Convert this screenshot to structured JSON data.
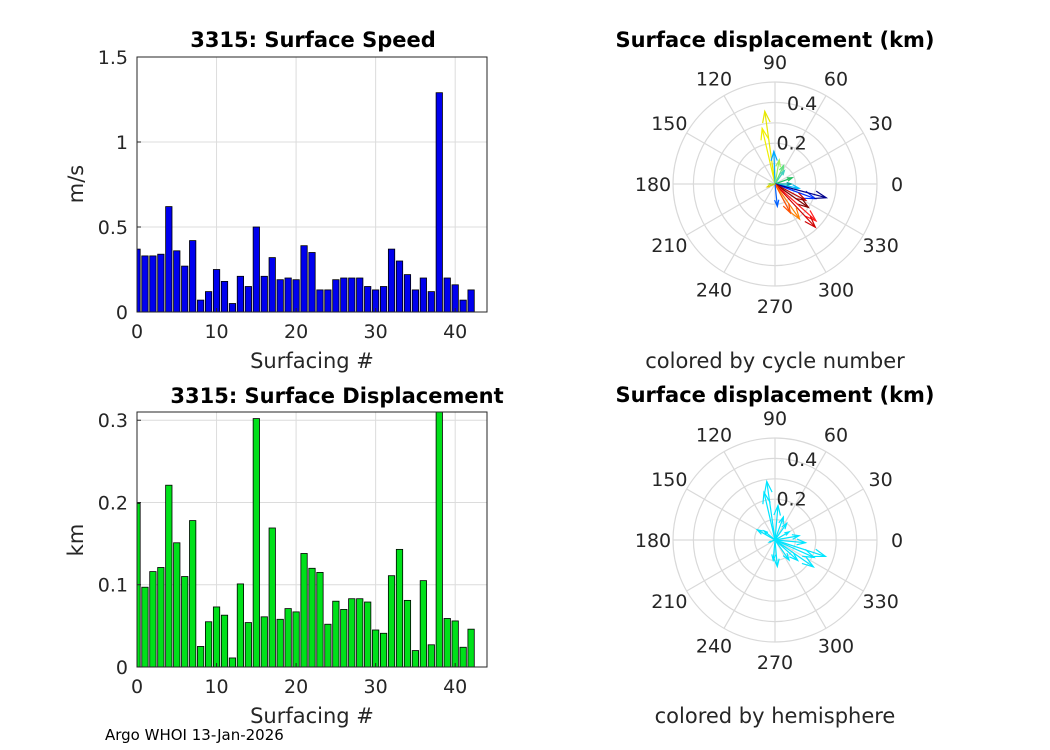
{
  "footer": "Argo WHOI 13-Jan-2026",
  "chart_data": [
    {
      "type": "bar",
      "title": "3315: Surface Speed",
      "xlabel": "Surfacing #",
      "ylabel": "m/s",
      "xlim": [
        0,
        44
      ],
      "ylim": [
        0,
        1.5
      ],
      "xticks": [
        "0",
        "10",
        "20",
        "30",
        "40"
      ],
      "yticks": [
        "0",
        "0.5",
        "1",
        "1.5"
      ],
      "color": "#0000ee",
      "x": [
        0,
        1,
        2,
        3,
        4,
        5,
        6,
        7,
        8,
        9,
        10,
        11,
        12,
        13,
        14,
        15,
        16,
        17,
        18,
        19,
        20,
        21,
        22,
        23,
        24,
        25,
        26,
        27,
        28,
        29,
        30,
        31,
        32,
        33,
        34,
        35,
        36,
        37,
        38,
        39,
        40,
        41,
        42
      ],
      "values": [
        0.37,
        0.33,
        0.33,
        0.34,
        0.62,
        0.36,
        0.27,
        0.42,
        0.07,
        0.12,
        0.25,
        0.18,
        0.05,
        0.21,
        0.15,
        0.5,
        0.21,
        0.32,
        0.19,
        0.2,
        0.19,
        0.39,
        0.35,
        0.13,
        0.13,
        0.19,
        0.2,
        0.2,
        0.2,
        0.15,
        0.13,
        0.15,
        0.37,
        0.3,
        0.22,
        0.13,
        0.2,
        0.12,
        1.29,
        0.2,
        0.16,
        0.07,
        0.13
      ]
    },
    {
      "type": "bar",
      "title": "3315: Surface Displacement",
      "xlabel": "Surfacing #",
      "ylabel": "km",
      "xlim": [
        0,
        44
      ],
      "ylim": [
        0,
        0.31
      ],
      "xticks": [
        "0",
        "10",
        "20",
        "30",
        "40"
      ],
      "yticks": [
        "0",
        "0.1",
        "0.2",
        "0.3"
      ],
      "color": "#00e01a",
      "x": [
        0,
        1,
        2,
        3,
        4,
        5,
        6,
        7,
        8,
        9,
        10,
        11,
        12,
        13,
        14,
        15,
        16,
        17,
        18,
        19,
        20,
        21,
        22,
        23,
        24,
        25,
        26,
        27,
        28,
        29,
        30,
        31,
        32,
        33,
        34,
        35,
        36,
        37,
        38,
        39,
        40,
        41,
        42
      ],
      "values": [
        0.199,
        0.097,
        0.116,
        0.121,
        0.221,
        0.151,
        0.11,
        0.178,
        0.025,
        0.055,
        0.073,
        0.063,
        0.011,
        0.101,
        0.054,
        0.302,
        0.061,
        0.169,
        0.058,
        0.071,
        0.067,
        0.138,
        0.12,
        0.115,
        0.052,
        0.08,
        0.07,
        0.083,
        0.083,
        0.079,
        0.045,
        0.041,
        0.111,
        0.143,
        0.081,
        0.02,
        0.105,
        0.027,
        0.31,
        0.059,
        0.056,
        0.024,
        0.046
      ]
    },
    {
      "type": "polar-compass",
      "title": "Surface displacement (km)",
      "caption": "colored by cycle number",
      "rmax": 0.5,
      "radial_ticks": [
        "0.2",
        "0.4"
      ],
      "angle_labels": [
        "0",
        "30",
        "60",
        "90",
        "120",
        "150",
        "180",
        "210",
        "240",
        "270",
        "300",
        "330"
      ],
      "arrows": [
        {
          "angle": 98,
          "r": 0.36,
          "color": "#e6e600"
        },
        {
          "angle": 103,
          "r": 0.28,
          "color": "#f0f000"
        },
        {
          "angle": 92,
          "r": 0.16,
          "color": "#00aaff"
        },
        {
          "angle": 80,
          "r": 0.12,
          "color": "#9ef05a"
        },
        {
          "angle": 65,
          "r": 0.1,
          "color": "#60e080"
        },
        {
          "angle": 55,
          "r": 0.08,
          "color": "#40d0c0"
        },
        {
          "angle": 20,
          "r": 0.09,
          "color": "#20c060"
        },
        {
          "angle": 0,
          "r": 0.08,
          "color": "#00a0a0"
        },
        {
          "angle": 350,
          "r": 0.12,
          "color": "#00c0ff"
        },
        {
          "angle": 340,
          "r": 0.21,
          "color": "#0030ff"
        },
        {
          "angle": 345,
          "r": 0.26,
          "color": "#00008b"
        },
        {
          "angle": 332,
          "r": 0.17,
          "color": "#c00000"
        },
        {
          "angle": 325,
          "r": 0.2,
          "color": "#800000"
        },
        {
          "angle": 318,
          "r": 0.27,
          "color": "#ff2020"
        },
        {
          "angle": 313,
          "r": 0.29,
          "color": "#d00000"
        },
        {
          "angle": 305,
          "r": 0.21,
          "color": "#ff8000"
        },
        {
          "angle": 298,
          "r": 0.16,
          "color": "#ff5000"
        },
        {
          "angle": 276,
          "r": 0.11,
          "color": "#0060ff"
        },
        {
          "angle": 200,
          "r": 0.04,
          "color": "#e6d000"
        },
        {
          "angle": 180,
          "r": 0.03,
          "color": "#90d040"
        }
      ]
    },
    {
      "type": "polar-compass",
      "title": "Surface displacement (km)",
      "caption": "colored by hemisphere",
      "rmax": 0.5,
      "radial_ticks": [
        "0.2",
        "0.4"
      ],
      "angle_labels": [
        "0",
        "30",
        "60",
        "90",
        "120",
        "150",
        "180",
        "210",
        "240",
        "270",
        "300",
        "330"
      ],
      "color": "#00e5ff",
      "arrows": [
        {
          "angle": 98,
          "r": 0.29
        },
        {
          "angle": 103,
          "r": 0.24
        },
        {
          "angle": 85,
          "r": 0.17
        },
        {
          "angle": 70,
          "r": 0.12
        },
        {
          "angle": 55,
          "r": 0.1
        },
        {
          "angle": 30,
          "r": 0.08
        },
        {
          "angle": 10,
          "r": 0.12
        },
        {
          "angle": 355,
          "r": 0.15
        },
        {
          "angle": 342,
          "r": 0.26
        },
        {
          "angle": 336,
          "r": 0.21
        },
        {
          "angle": 325,
          "r": 0.23
        },
        {
          "angle": 318,
          "r": 0.15
        },
        {
          "angle": 305,
          "r": 0.12
        },
        {
          "angle": 275,
          "r": 0.13
        },
        {
          "angle": 265,
          "r": 0.1
        },
        {
          "angle": 150,
          "r": 0.1
        },
        {
          "angle": 140,
          "r": 0.07
        },
        {
          "angle": 200,
          "r": 0.03
        }
      ]
    }
  ]
}
